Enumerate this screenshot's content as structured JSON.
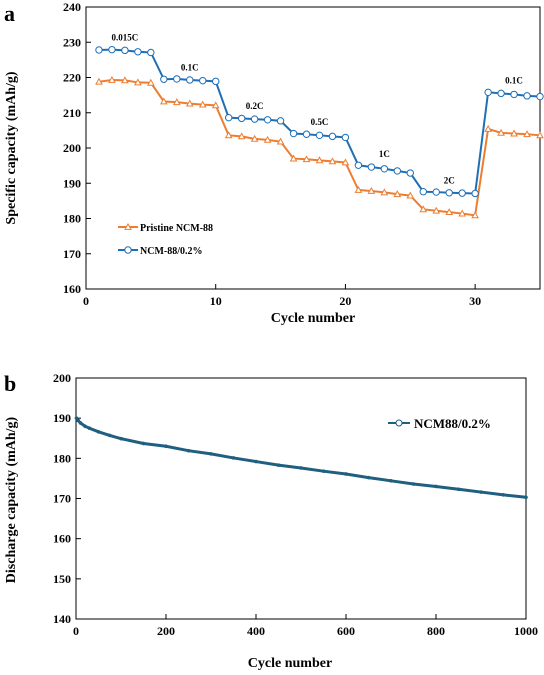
{
  "chart_data": [
    {
      "panel": "a",
      "type": "line",
      "xlabel": "Cycle number",
      "ylabel": "Specific capacity (mAh/g)",
      "xlim": [
        0,
        35
      ],
      "ylim": [
        160,
        240
      ],
      "xticks": [
        0,
        10,
        20,
        30
      ],
      "yticks": [
        160,
        170,
        180,
        190,
        200,
        210,
        220,
        230,
        240
      ],
      "legend_position": "lower-left",
      "series": [
        {
          "name": "Pristine NCM-88",
          "color": "#ed7d31",
          "marker": "triangle",
          "x": [
            1,
            2,
            3,
            4,
            5,
            6,
            7,
            8,
            9,
            10,
            11,
            12,
            13,
            14,
            15,
            16,
            17,
            18,
            19,
            20,
            21,
            22,
            23,
            24,
            25,
            26,
            27,
            28,
            29,
            30,
            31,
            32,
            33,
            34,
            35
          ],
          "values": [
            218.8,
            219.3,
            219.2,
            218.6,
            218.5,
            213.2,
            213.0,
            212.6,
            212.3,
            212.1,
            203.6,
            203.3,
            202.6,
            202.3,
            201.8,
            197.0,
            196.8,
            196.5,
            196.2,
            195.9,
            188.1,
            187.8,
            187.4,
            186.9,
            186.5,
            182.6,
            182.2,
            181.8,
            181.4,
            180.9,
            205.4,
            204.3,
            204.1,
            203.9,
            203.6
          ]
        },
        {
          "name": "NCM-88/0.2%",
          "color": "#1f6fb5",
          "marker": "circle",
          "x": [
            1,
            2,
            3,
            4,
            5,
            6,
            7,
            8,
            9,
            10,
            11,
            12,
            13,
            14,
            15,
            16,
            17,
            18,
            19,
            20,
            21,
            22,
            23,
            24,
            25,
            26,
            27,
            28,
            29,
            30,
            31,
            32,
            33,
            34,
            35
          ],
          "values": [
            227.8,
            227.9,
            227.7,
            227.3,
            227.1,
            219.5,
            219.6,
            219.3,
            219.1,
            218.9,
            208.6,
            208.4,
            208.2,
            208.0,
            207.7,
            204.1,
            203.9,
            203.6,
            203.3,
            203.0,
            195.1,
            194.6,
            194.1,
            193.5,
            192.9,
            187.6,
            187.5,
            187.3,
            187.2,
            187.1,
            215.8,
            215.5,
            215.2,
            214.8,
            214.6
          ]
        }
      ],
      "annotations": [
        {
          "text": "0.015C",
          "x": 3,
          "y": 230.5
        },
        {
          "text": "0.1C",
          "x": 8,
          "y": 222.0
        },
        {
          "text": "0.2C",
          "x": 13,
          "y": 211.0
        },
        {
          "text": "0.5C",
          "x": 18,
          "y": 206.5
        },
        {
          "text": "1C",
          "x": 23,
          "y": 197.5
        },
        {
          "text": "2C",
          "x": 28,
          "y": 190.0
        },
        {
          "text": "0.1C",
          "x": 33,
          "y": 218.3
        }
      ]
    },
    {
      "panel": "b",
      "type": "line",
      "xlabel": "Cycle number",
      "ylabel": "Discharge capacity (mAh/g)",
      "xlim": [
        0,
        1000
      ],
      "ylim": [
        140,
        200
      ],
      "xticks": [
        0,
        200,
        400,
        600,
        800,
        1000
      ],
      "yticks": [
        140,
        150,
        160,
        170,
        180,
        190,
        200
      ],
      "legend_position": "top-right",
      "series": [
        {
          "name": "NCM88/0.2%",
          "color": "#1f5f7f",
          "marker": "circle",
          "x": [
            1,
            5,
            10,
            20,
            30,
            50,
            75,
            100,
            150,
            200,
            250,
            300,
            350,
            400,
            450,
            500,
            550,
            600,
            650,
            700,
            750,
            800,
            850,
            900,
            950,
            1000
          ],
          "values": [
            190.0,
            189.4,
            188.8,
            188.0,
            187.5,
            186.6,
            185.7,
            184.9,
            183.7,
            183.0,
            181.9,
            181.1,
            180.1,
            179.2,
            178.3,
            177.6,
            176.8,
            176.1,
            175.2,
            174.4,
            173.6,
            173.0,
            172.3,
            171.6,
            170.9,
            170.3
          ]
        }
      ]
    }
  ],
  "panel_labels": {
    "a": "a",
    "b": "b"
  }
}
